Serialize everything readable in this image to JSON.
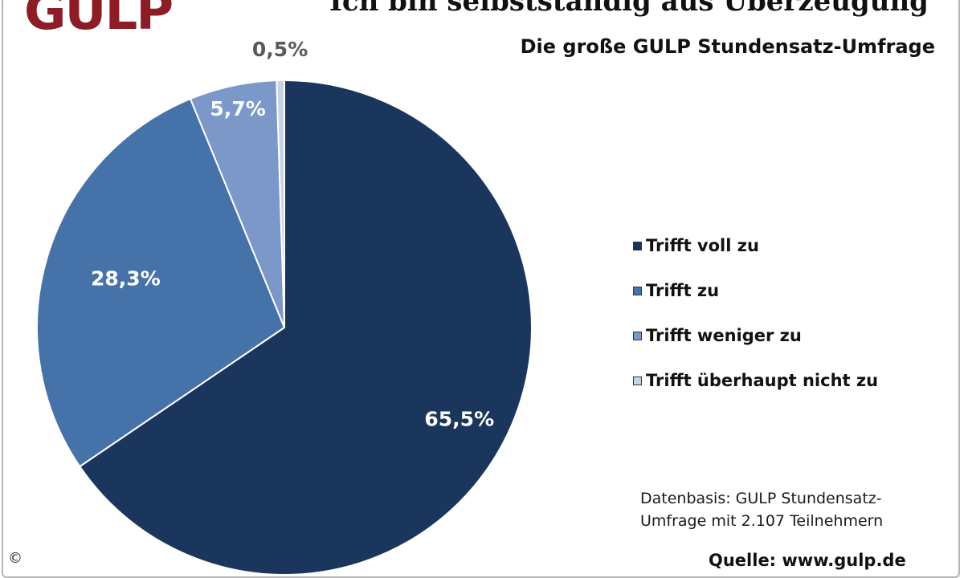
{
  "header": {
    "logo_text": "GULP",
    "title": "Ich bin selbstständig aus Überzeugung",
    "subtitle": "Die große GULP Stundensatz-Umfrage"
  },
  "chart_data": {
    "type": "pie",
    "title": "Ich bin selbstständig aus Überzeugung",
    "subtitle": "Die große GULP Stundensatz-Umfrage",
    "categories": [
      "Trifft voll zu",
      "Trifft zu",
      "Trifft weniger zu",
      "Trifft überhaupt nicht zu"
    ],
    "values": [
      65.5,
      28.3,
      5.7,
      0.5
    ],
    "data_labels": [
      "65,5%",
      "28,3%",
      "5,7%",
      "0,5%"
    ],
    "colors": [
      "#1b365d",
      "#4672aa",
      "#7b98c8",
      "#c6d3e7"
    ],
    "label_colors": [
      "#ffffff",
      "#ffffff",
      "#ffffff",
      "#595959"
    ],
    "legend_position": "right"
  },
  "footer": {
    "note_line1": "Datenbasis: GULP Stundensatz-",
    "note_line2": "Umfrage mit 2.107 Teilnehmern",
    "source": "Quelle: www.gulp.de",
    "copyright": "©"
  }
}
